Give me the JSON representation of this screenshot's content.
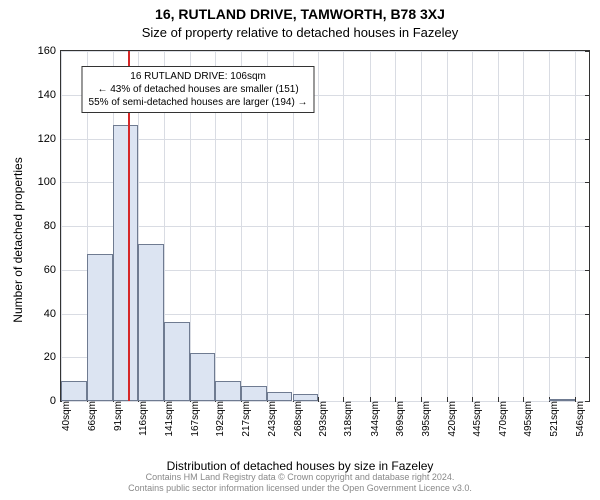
{
  "titles": {
    "line1": "16, RUTLAND DRIVE, TAMWORTH, B78 3XJ",
    "line2": "Size of property relative to detached houses in Fazeley"
  },
  "axes": {
    "ylabel": "Number of detached properties",
    "xlabel": "Distribution of detached houses by size in Fazeley"
  },
  "footer": {
    "line1": "Contains HM Land Registry data © Crown copyright and database right 2024.",
    "line2": "Contains public sector information licensed under the Open Government Licence v3.0."
  },
  "chart": {
    "type": "histogram",
    "ylim": [
      0,
      160
    ],
    "yticks": [
      0,
      20,
      40,
      60,
      80,
      100,
      120,
      140,
      160
    ],
    "x_range": [
      40,
      560
    ],
    "xticks": [
      40,
      66,
      91,
      116,
      141,
      167,
      192,
      217,
      243,
      268,
      293,
      318,
      344,
      369,
      395,
      420,
      445,
      470,
      495,
      521,
      546
    ],
    "xtick_unit": "sqm",
    "grid_color": "#d9dce3",
    "bar_fill": "#dce4f2",
    "bar_border": "#6f7b91",
    "background": "#ffffff",
    "axis_color": "#333333",
    "bars": [
      {
        "x0": 40,
        "x1": 66,
        "h": 9
      },
      {
        "x0": 66,
        "x1": 91,
        "h": 67
      },
      {
        "x0": 91,
        "x1": 116,
        "h": 126
      },
      {
        "x0": 116,
        "x1": 141,
        "h": 72
      },
      {
        "x0": 141,
        "x1": 167,
        "h": 36
      },
      {
        "x0": 167,
        "x1": 192,
        "h": 22
      },
      {
        "x0": 192,
        "x1": 217,
        "h": 9
      },
      {
        "x0": 217,
        "x1": 243,
        "h": 7
      },
      {
        "x0": 243,
        "x1": 268,
        "h": 4
      },
      {
        "x0": 268,
        "x1": 293,
        "h": 3
      },
      {
        "x0": 293,
        "x1": 318,
        "h": 0
      },
      {
        "x0": 318,
        "x1": 344,
        "h": 0
      },
      {
        "x0": 344,
        "x1": 369,
        "h": 0
      },
      {
        "x0": 369,
        "x1": 395,
        "h": 0
      },
      {
        "x0": 395,
        "x1": 420,
        "h": 0
      },
      {
        "x0": 420,
        "x1": 445,
        "h": 0
      },
      {
        "x0": 445,
        "x1": 470,
        "h": 0
      },
      {
        "x0": 470,
        "x1": 495,
        "h": 0
      },
      {
        "x0": 495,
        "x1": 521,
        "h": 0
      },
      {
        "x0": 521,
        "x1": 546,
        "h": 1
      }
    ],
    "marker": {
      "x": 106,
      "color": "#d62728"
    },
    "annotation": {
      "line1": "16 RUTLAND DRIVE: 106sqm",
      "line2": "← 43% of detached houses are smaller (151)",
      "line3": "55% of semi-detached houses are larger (194) →",
      "x_center": 175,
      "y_top": 153
    }
  }
}
